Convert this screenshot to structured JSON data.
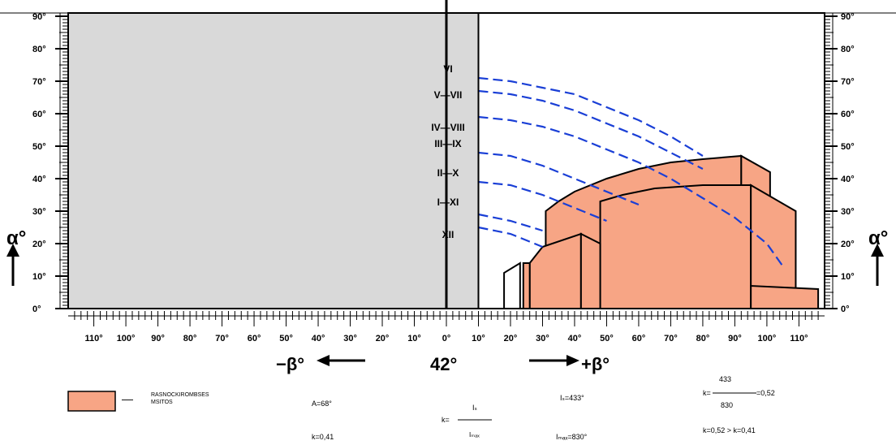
{
  "axes": {
    "alpha_ticks": [
      {
        "value": 0,
        "label": "0°"
      },
      {
        "value": 10,
        "label": "10°"
      },
      {
        "value": 20,
        "label": "20°"
      },
      {
        "value": 30,
        "label": "30°"
      },
      {
        "value": 40,
        "label": "40°"
      },
      {
        "value": 50,
        "label": "50°"
      },
      {
        "value": 60,
        "label": "60°"
      },
      {
        "value": 70,
        "label": "70°"
      },
      {
        "value": 80,
        "label": "80°"
      },
      {
        "value": 90,
        "label": "90°"
      }
    ],
    "beta_ticks": [
      {
        "value": -110,
        "label": "110°"
      },
      {
        "value": -100,
        "label": "100°"
      },
      {
        "value": -90,
        "label": "90°"
      },
      {
        "value": -80,
        "label": "80°"
      },
      {
        "value": -70,
        "label": "70°"
      },
      {
        "value": -60,
        "label": "60°"
      },
      {
        "value": -50,
        "label": "50°"
      },
      {
        "value": -40,
        "label": "40°"
      },
      {
        "value": -30,
        "label": "30°"
      },
      {
        "value": -20,
        "label": "20°"
      },
      {
        "value": -10,
        "label": "10°"
      },
      {
        "value": 0,
        "label": "0°"
      },
      {
        "value": 10,
        "label": "10°"
      },
      {
        "value": 20,
        "label": "20°"
      },
      {
        "value": 30,
        "label": "30°"
      },
      {
        "value": 40,
        "label": "40°"
      },
      {
        "value": 50,
        "label": "50°"
      },
      {
        "value": 60,
        "label": "60°"
      },
      {
        "value": 70,
        "label": "70°"
      },
      {
        "value": 80,
        "label": "80°"
      },
      {
        "value": 90,
        "label": "90°"
      },
      {
        "value": 100,
        "label": "100°"
      },
      {
        "value": 110,
        "label": "110°"
      }
    ],
    "alpha_label": "α°",
    "beta_minus_label": "−β°",
    "beta_plus_label": "+β°",
    "center_angle": "42°",
    "beta_range": [
      -118,
      118
    ],
    "alpha_range": [
      0,
      91
    ]
  },
  "month_labels": [
    {
      "text": "VI",
      "alpha": 74
    },
    {
      "text": "V—VII",
      "alpha": 66
    },
    {
      "text": "IV—VIII",
      "alpha": 56
    },
    {
      "text": "III—IX",
      "alpha": 51
    },
    {
      "text": "II—X",
      "alpha": 42
    },
    {
      "text": "I—XI",
      "alpha": 33
    },
    {
      "text": "XII",
      "alpha": 23
    }
  ],
  "shaded_region": {
    "beta_from": -118,
    "beta_to": 10,
    "color": "#d9d9d9"
  },
  "sun_curves": [
    {
      "points": [
        [
          10,
          71
        ],
        [
          20,
          70
        ],
        [
          30,
          68
        ],
        [
          40,
          66
        ],
        [
          50,
          62
        ],
        [
          60,
          58
        ],
        [
          70,
          53
        ],
        [
          80,
          47
        ]
      ]
    },
    {
      "points": [
        [
          10,
          67
        ],
        [
          20,
          66
        ],
        [
          30,
          64
        ],
        [
          40,
          61
        ],
        [
          50,
          57
        ],
        [
          60,
          53
        ],
        [
          70,
          48
        ],
        [
          80,
          43
        ]
      ]
    },
    {
      "points": [
        [
          10,
          59
        ],
        [
          20,
          58
        ],
        [
          30,
          56
        ],
        [
          40,
          53
        ],
        [
          50,
          49
        ],
        [
          60,
          45
        ],
        [
          70,
          40
        ],
        [
          80,
          34
        ],
        [
          90,
          28
        ],
        [
          100,
          20
        ],
        [
          105,
          13
        ]
      ]
    },
    {
      "points": [
        [
          10,
          48
        ],
        [
          20,
          47
        ],
        [
          30,
          44
        ],
        [
          40,
          40
        ],
        [
          50,
          36
        ],
        [
          60,
          32
        ]
      ]
    },
    {
      "points": [
        [
          10,
          39
        ],
        [
          20,
          38
        ],
        [
          30,
          35
        ],
        [
          40,
          31
        ],
        [
          50,
          27
        ]
      ]
    },
    {
      "points": [
        [
          10,
          29
        ],
        [
          20,
          27
        ],
        [
          30,
          24
        ]
      ]
    },
    {
      "points": [
        [
          10,
          25
        ],
        [
          20,
          23
        ],
        [
          30,
          19
        ]
      ]
    }
  ],
  "obstruction_polygons": [
    {
      "points": [
        [
          31,
          0
        ],
        [
          31,
          30
        ],
        [
          35,
          33
        ],
        [
          40,
          36
        ],
        [
          50,
          40
        ],
        [
          60,
          43
        ],
        [
          70,
          45
        ],
        [
          80,
          46
        ],
        [
          92,
          47
        ],
        [
          92,
          0
        ]
      ],
      "fill": "#f7a585"
    },
    {
      "points": [
        [
          92,
          0
        ],
        [
          92,
          47
        ],
        [
          101,
          42
        ],
        [
          101,
          0
        ]
      ],
      "fill": "#f7a585"
    },
    {
      "points": [
        [
          48,
          0
        ],
        [
          48,
          33
        ],
        [
          55,
          35
        ],
        [
          65,
          37
        ],
        [
          80,
          38
        ],
        [
          95,
          38
        ],
        [
          95,
          0
        ]
      ],
      "fill": "#f7a585"
    },
    {
      "points": [
        [
          95,
          0
        ],
        [
          95,
          38
        ],
        [
          109,
          30
        ],
        [
          109,
          0
        ]
      ],
      "fill": "#f7a585"
    },
    {
      "points": [
        [
          95,
          0
        ],
        [
          95,
          7
        ],
        [
          116,
          6
        ],
        [
          116,
          0
        ]
      ],
      "fill": "#f7a585"
    },
    {
      "points": [
        [
          26,
          0
        ],
        [
          26,
          14
        ],
        [
          30,
          19
        ],
        [
          42,
          23
        ],
        [
          42,
          0
        ]
      ],
      "fill": "#f7a585"
    },
    {
      "points": [
        [
          42,
          0
        ],
        [
          42,
          23
        ],
        [
          48,
          20
        ],
        [
          48,
          0
        ]
      ],
      "fill": "#f7a585"
    },
    {
      "points": [
        [
          24,
          0
        ],
        [
          24,
          14
        ],
        [
          26,
          14
        ],
        [
          26,
          0
        ]
      ],
      "fill": "#f7a585"
    },
    {
      "points": [
        [
          18,
          0
        ],
        [
          18,
          11
        ],
        [
          23,
          14
        ],
        [
          23,
          0
        ]
      ],
      "fill": "#ffffff"
    }
  ],
  "legend": {
    "swatch_color": "#f7a585",
    "dash": "—",
    "text_line1": "RASNOCKIROMBSES",
    "text_line2": "MSITOS"
  },
  "formulas": {
    "a_value": "A=68°",
    "k_value": "k=0,41",
    "k_frac_lhs": "k=",
    "k_frac_num": "Iₛ",
    "k_frac_den": "Iₘₐₓ",
    "is_value": "Iₛ=433°",
    "imax_value": "Iₘₐₓ=830°",
    "ratio_lhs": "k=",
    "ratio_num": "433",
    "ratio_den": "830",
    "ratio_result": "=0,52",
    "compare": "k=0,52 > k=0,41"
  }
}
